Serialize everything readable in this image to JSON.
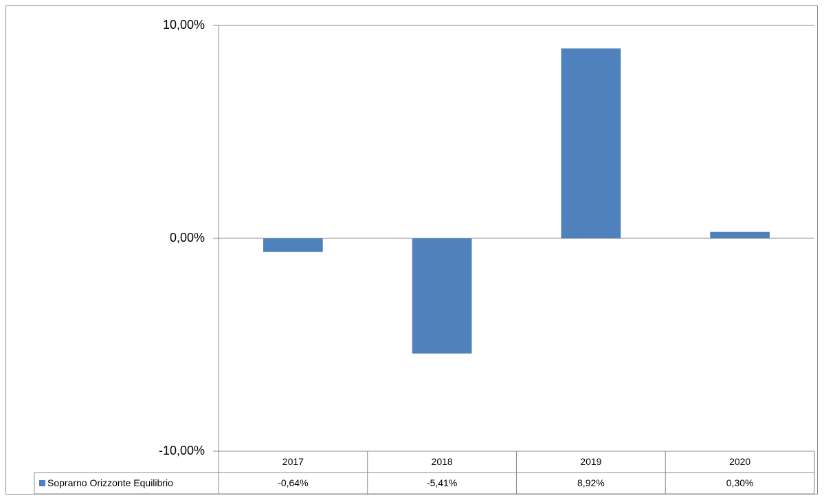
{
  "chart_data": {
    "type": "bar",
    "categories": [
      "2017",
      "2018",
      "2019",
      "2020"
    ],
    "series": [
      {
        "name": "Soprarno Orizzonte Equilibrio",
        "color": "#4f81bd",
        "values": [
          -0.64,
          -5.41,
          8.92,
          0.3
        ],
        "value_labels": [
          "-0,64%",
          "-5,41%",
          "8,92%",
          "0,30%"
        ]
      }
    ],
    "ylim": [
      -10,
      10
    ],
    "yticks": [
      {
        "value": -10,
        "label": "-10,00%"
      },
      {
        "value": 0,
        "label": "0,00%"
      },
      {
        "value": 10,
        "label": "10,00%"
      }
    ],
    "grid": true
  }
}
